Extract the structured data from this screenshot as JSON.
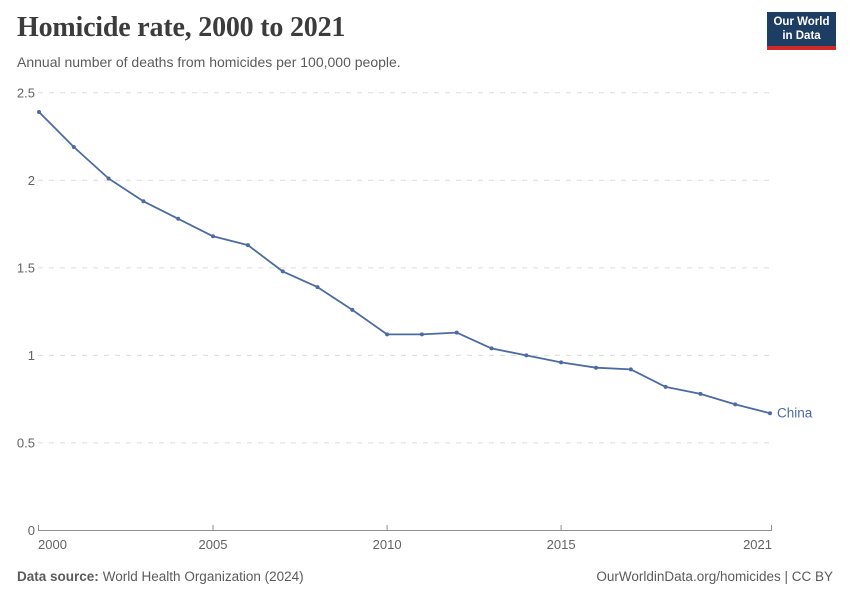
{
  "header": {
    "title": "Homicide rate, 2000 to 2021",
    "subtitle": "Annual number of deaths from homicides per 100,000 people.",
    "logo": {
      "line1": "Our World",
      "line2": "in Data"
    }
  },
  "chart_data": {
    "type": "line",
    "title": "Homicide rate, 2000 to 2021",
    "subtitle": "Annual number of deaths from homicides per 100,000 people.",
    "x": [
      2000,
      2001,
      2002,
      2003,
      2004,
      2005,
      2006,
      2007,
      2008,
      2009,
      2010,
      2011,
      2012,
      2013,
      2014,
      2015,
      2016,
      2017,
      2018,
      2019,
      2020,
      2021
    ],
    "series": [
      {
        "name": "China",
        "color": "#4c6ba3",
        "values": [
          2.39,
          2.19,
          2.01,
          1.88,
          1.78,
          1.68,
          1.63,
          1.48,
          1.39,
          1.26,
          1.12,
          1.12,
          1.13,
          1.04,
          1.0,
          0.96,
          0.93,
          0.92,
          0.82,
          0.78,
          0.72,
          0.67
        ]
      }
    ],
    "xlim": [
      2000,
      2021
    ],
    "ylim": [
      0,
      2.5
    ],
    "x_ticks": [
      2000,
      2005,
      2010,
      2015,
      2021
    ],
    "y_ticks": [
      0,
      0.5,
      1,
      1.5,
      2,
      2.5
    ],
    "grid": "horizontal-dashed",
    "legend": "end-of-line-label",
    "xlabel": "",
    "ylabel": ""
  },
  "footer": {
    "source_label": "Data source:",
    "source_value": "World Health Organization (2024)",
    "credit": "OurWorldinData.org/homicides | CC BY"
  },
  "colors": {
    "line": "#4c6ba3",
    "logo_bg": "#1d3d63",
    "logo_accent": "#cf2a27",
    "grid": "#dcdcdc",
    "axis": "#8f8f8f",
    "tick_label": "#636363",
    "title": "#3c3c3c",
    "subtitle": "#5b5b5b",
    "footer": "#5b5b5b"
  }
}
